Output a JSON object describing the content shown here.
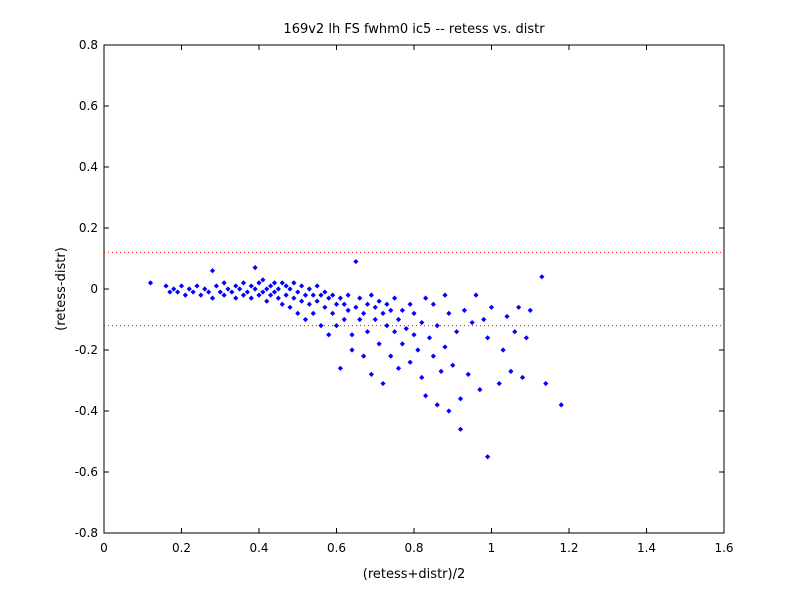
{
  "chart_data": {
    "type": "scatter",
    "title": "169v2 lh FS fwhm0 ic5 -- retess vs. distr",
    "xlabel": "(retess+distr)/2",
    "ylabel": "(retess-distr)",
    "xlim": [
      0,
      1.6
    ],
    "ylim": [
      -0.8,
      0.8
    ],
    "xticks": [
      0,
      0.2,
      0.4,
      0.6,
      0.8,
      1,
      1.2,
      1.4,
      1.6
    ],
    "yticks": [
      -0.8,
      -0.6,
      -0.4,
      -0.2,
      0,
      0.2,
      0.4,
      0.6,
      0.8
    ],
    "xtick_labels": [
      "0",
      "0.2",
      "0.4",
      "0.6",
      "0.8",
      "1",
      "1.2",
      "1.4",
      "1.6"
    ],
    "ytick_labels": [
      "-0.8",
      "-0.6",
      "-0.4",
      "-0.2",
      "0",
      "0.2",
      "0.4",
      "0.6",
      "0.8"
    ],
    "reference_lines": [
      0.12,
      -0.12
    ],
    "reference_line_style": "dotted",
    "grid": false,
    "legend": "none",
    "colors": {
      "points": "#0000ff",
      "reference_lines": "#ff0000",
      "axes": "#000000"
    },
    "series": [
      {
        "marker": "diamond",
        "points": [
          [
            0.12,
            0.02
          ],
          [
            0.16,
            0.01
          ],
          [
            0.17,
            -0.01
          ],
          [
            0.18,
            0.0
          ],
          [
            0.19,
            -0.01
          ],
          [
            0.2,
            0.01
          ],
          [
            0.21,
            -0.02
          ],
          [
            0.22,
            0.0
          ],
          [
            0.23,
            -0.01
          ],
          [
            0.24,
            0.01
          ],
          [
            0.25,
            -0.02
          ],
          [
            0.26,
            0.0
          ],
          [
            0.27,
            -0.01
          ],
          [
            0.28,
            0.06
          ],
          [
            0.28,
            -0.03
          ],
          [
            0.29,
            0.01
          ],
          [
            0.3,
            -0.01
          ],
          [
            0.31,
            0.02
          ],
          [
            0.31,
            -0.02
          ],
          [
            0.32,
            0.0
          ],
          [
            0.33,
            -0.01
          ],
          [
            0.34,
            0.01
          ],
          [
            0.34,
            -0.03
          ],
          [
            0.35,
            0.0
          ],
          [
            0.36,
            -0.02
          ],
          [
            0.36,
            0.02
          ],
          [
            0.37,
            -0.01
          ],
          [
            0.38,
            0.01
          ],
          [
            0.38,
            -0.03
          ],
          [
            0.39,
            0.0
          ],
          [
            0.39,
            0.07
          ],
          [
            0.4,
            -0.02
          ],
          [
            0.4,
            0.02
          ],
          [
            0.41,
            -0.01
          ],
          [
            0.41,
            0.03
          ],
          [
            0.42,
            0.0
          ],
          [
            0.42,
            -0.04
          ],
          [
            0.43,
            0.01
          ],
          [
            0.43,
            -0.02
          ],
          [
            0.44,
            0.02
          ],
          [
            0.44,
            -0.01
          ],
          [
            0.45,
            0.0
          ],
          [
            0.45,
            -0.03
          ],
          [
            0.46,
            0.02
          ],
          [
            0.46,
            -0.05
          ],
          [
            0.47,
            0.01
          ],
          [
            0.47,
            -0.02
          ],
          [
            0.48,
            0.0
          ],
          [
            0.48,
            -0.06
          ],
          [
            0.49,
            0.02
          ],
          [
            0.49,
            -0.03
          ],
          [
            0.5,
            -0.01
          ],
          [
            0.5,
            -0.08
          ],
          [
            0.51,
            0.01
          ],
          [
            0.51,
            -0.04
          ],
          [
            0.52,
            -0.02
          ],
          [
            0.52,
            -0.1
          ],
          [
            0.53,
            0.0
          ],
          [
            0.53,
            -0.05
          ],
          [
            0.54,
            -0.02
          ],
          [
            0.54,
            -0.08
          ],
          [
            0.55,
            0.01
          ],
          [
            0.55,
            -0.04
          ],
          [
            0.56,
            -0.02
          ],
          [
            0.56,
            -0.12
          ],
          [
            0.57,
            -0.06
          ],
          [
            0.57,
            -0.01
          ],
          [
            0.58,
            -0.03
          ],
          [
            0.58,
            -0.15
          ],
          [
            0.59,
            -0.08
          ],
          [
            0.59,
            -0.02
          ],
          [
            0.6,
            -0.05
          ],
          [
            0.6,
            -0.12
          ],
          [
            0.61,
            -0.03
          ],
          [
            0.61,
            -0.26
          ],
          [
            0.62,
            -0.1
          ],
          [
            0.62,
            -0.05
          ],
          [
            0.63,
            -0.07
          ],
          [
            0.63,
            -0.02
          ],
          [
            0.64,
            -0.15
          ],
          [
            0.64,
            -0.2
          ],
          [
            0.65,
            0.09
          ],
          [
            0.65,
            -0.06
          ],
          [
            0.66,
            -0.1
          ],
          [
            0.66,
            -0.03
          ],
          [
            0.67,
            -0.22
          ],
          [
            0.67,
            -0.08
          ],
          [
            0.68,
            -0.05
          ],
          [
            0.68,
            -0.14
          ],
          [
            0.69,
            -0.02
          ],
          [
            0.69,
            -0.28
          ],
          [
            0.7,
            -0.1
          ],
          [
            0.7,
            -0.06
          ],
          [
            0.71,
            -0.18
          ],
          [
            0.71,
            -0.04
          ],
          [
            0.72,
            -0.31
          ],
          [
            0.72,
            -0.08
          ],
          [
            0.73,
            -0.12
          ],
          [
            0.73,
            -0.05
          ],
          [
            0.74,
            -0.22
          ],
          [
            0.74,
            -0.07
          ],
          [
            0.75,
            -0.14
          ],
          [
            0.75,
            -0.03
          ],
          [
            0.76,
            -0.1
          ],
          [
            0.76,
            -0.26
          ],
          [
            0.77,
            -0.07
          ],
          [
            0.77,
            -0.18
          ],
          [
            0.78,
            -0.13
          ],
          [
            0.79,
            -0.05
          ],
          [
            0.79,
            -0.24
          ],
          [
            0.8,
            -0.15
          ],
          [
            0.8,
            -0.08
          ],
          [
            0.81,
            -0.2
          ],
          [
            0.82,
            -0.11
          ],
          [
            0.82,
            -0.29
          ],
          [
            0.83,
            -0.03
          ],
          [
            0.83,
            -0.35
          ],
          [
            0.84,
            -0.16
          ],
          [
            0.85,
            -0.22
          ],
          [
            0.85,
            -0.05
          ],
          [
            0.86,
            -0.38
          ],
          [
            0.86,
            -0.12
          ],
          [
            0.87,
            -0.27
          ],
          [
            0.88,
            -0.02
          ],
          [
            0.88,
            -0.19
          ],
          [
            0.89,
            -0.4
          ],
          [
            0.89,
            -0.08
          ],
          [
            0.9,
            -0.25
          ],
          [
            0.91,
            -0.14
          ],
          [
            0.92,
            -0.46
          ],
          [
            0.92,
            -0.36
          ],
          [
            0.93,
            -0.07
          ],
          [
            0.94,
            -0.28
          ],
          [
            0.95,
            -0.11
          ],
          [
            0.96,
            -0.02
          ],
          [
            0.97,
            -0.33
          ],
          [
            0.98,
            -0.1
          ],
          [
            0.99,
            -0.55
          ],
          [
            0.99,
            -0.16
          ],
          [
            1.0,
            -0.06
          ],
          [
            1.02,
            -0.31
          ],
          [
            1.03,
            -0.2
          ],
          [
            1.04,
            -0.09
          ],
          [
            1.05,
            -0.27
          ],
          [
            1.06,
            -0.14
          ],
          [
            1.07,
            -0.06
          ],
          [
            1.08,
            -0.29
          ],
          [
            1.09,
            -0.16
          ],
          [
            1.1,
            -0.07
          ],
          [
            1.13,
            0.04
          ],
          [
            1.14,
            -0.31
          ],
          [
            1.18,
            -0.38
          ]
        ]
      }
    ]
  }
}
